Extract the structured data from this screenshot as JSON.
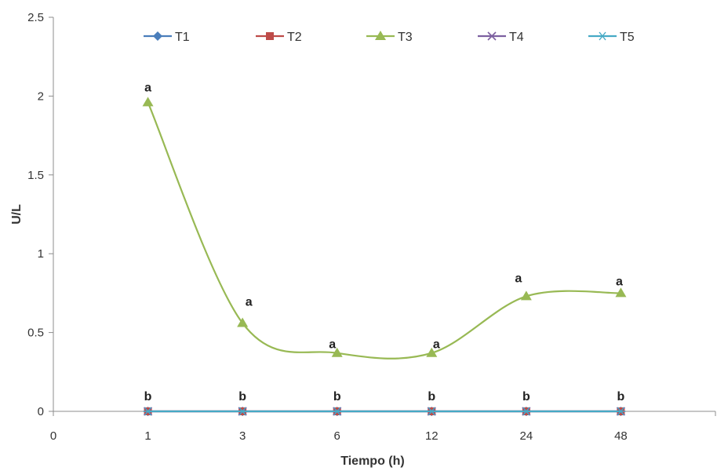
{
  "chart_data": {
    "type": "line",
    "title": "",
    "xlabel": "Tiempo (h)",
    "ylabel": "U/L",
    "x_origin_label": "0",
    "categories": [
      "1",
      "3",
      "6",
      "12",
      "24",
      "48"
    ],
    "ylim": [
      0,
      2.5
    ],
    "yticks": [
      "0",
      "0.5",
      "1",
      "1.5",
      "2",
      "2.5"
    ],
    "grid": false,
    "legend_position": "top",
    "series": [
      {
        "name": "T1",
        "marker": "diamond",
        "color": "#4a7ebb",
        "values": [
          0,
          0,
          0,
          0,
          0,
          0
        ],
        "labels": [
          "b",
          "b",
          "b",
          "b",
          "b",
          "b"
        ]
      },
      {
        "name": "T2",
        "marker": "square",
        "color": "#be4b48",
        "values": [
          0,
          0,
          0,
          0,
          0,
          0
        ],
        "labels": []
      },
      {
        "name": "T3",
        "marker": "triangle",
        "color": "#98b954",
        "values": [
          1.96,
          0.56,
          0.37,
          0.37,
          0.73,
          0.75
        ],
        "labels": [
          "a",
          "a",
          "a",
          "a",
          "a",
          "a"
        ],
        "smooth": true
      },
      {
        "name": "T4",
        "marker": "x",
        "color": "#7d60a0",
        "values": [
          0,
          0,
          0,
          0,
          0,
          0
        ],
        "labels": []
      },
      {
        "name": "T5",
        "marker": "star",
        "color": "#46aac5",
        "values": [
          0,
          0,
          0,
          0,
          0,
          0
        ],
        "labels": []
      }
    ]
  }
}
